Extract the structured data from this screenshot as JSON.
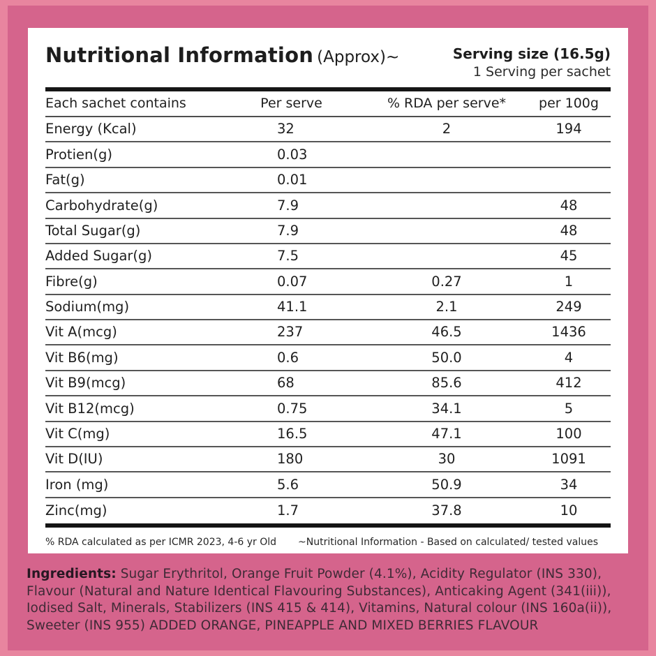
{
  "colors": {
    "background_pink": "#d5648c",
    "frame_pink": "#e8859f",
    "card_white": "#ffffff",
    "table_text": "#1f1f1f",
    "thick_rule": "#141414",
    "thin_rule": "#565656",
    "ingredients_text": "#3f2a36"
  },
  "header": {
    "title": "Nutritional Information",
    "title_suffix": "(Approx)~",
    "serving_size": "Serving size (16.5g)",
    "servings_per_pack": "1 Serving per sachet"
  },
  "table": {
    "columns": [
      "Each sachet contains",
      "Per serve",
      "% RDA per serve*",
      "per 100g"
    ],
    "rows": [
      {
        "nutrient": "Energy (Kcal)",
        "per_serve": "32",
        "rda_per_serve": "2",
        "per_100g": "194"
      },
      {
        "nutrient": "Protien(g)",
        "per_serve": "0.03",
        "rda_per_serve": "",
        "per_100g": ""
      },
      {
        "nutrient": "Fat(g)",
        "per_serve": "0.01",
        "rda_per_serve": "",
        "per_100g": ""
      },
      {
        "nutrient": "Carbohydrate(g)",
        "per_serve": "7.9",
        "rda_per_serve": "",
        "per_100g": "48"
      },
      {
        "nutrient": "Total Sugar(g)",
        "per_serve": "7.9",
        "rda_per_serve": "",
        "per_100g": "48"
      },
      {
        "nutrient": "Added Sugar(g)",
        "per_serve": "7.5",
        "rda_per_serve": "",
        "per_100g": "45"
      },
      {
        "nutrient": "Fibre(g)",
        "per_serve": "0.07",
        "rda_per_serve": "0.27",
        "per_100g": "1"
      },
      {
        "nutrient": "Sodium(mg)",
        "per_serve": "41.1",
        "rda_per_serve": "2.1",
        "per_100g": "249"
      },
      {
        "nutrient": "Vit A(mcg)",
        "per_serve": "237",
        "rda_per_serve": "46.5",
        "per_100g": "1436"
      },
      {
        "nutrient": "Vit B6(mg)",
        "per_serve": "0.6",
        "rda_per_serve": "50.0",
        "per_100g": "4"
      },
      {
        "nutrient": "Vit B9(mcg)",
        "per_serve": "68",
        "rda_per_serve": "85.6",
        "per_100g": "412"
      },
      {
        "nutrient": "Vit B12(mcg)",
        "per_serve": "0.75",
        "rda_per_serve": "34.1",
        "per_100g": "5"
      },
      {
        "nutrient": "Vit C(mg)",
        "per_serve": "16.5",
        "rda_per_serve": "47.1",
        "per_100g": "100"
      },
      {
        "nutrient": "Vit D(IU)",
        "per_serve": "180",
        "rda_per_serve": "30",
        "per_100g": "1091"
      },
      {
        "nutrient": "Iron (mg)",
        "per_serve": "5.6",
        "rda_per_serve": "50.9",
        "per_100g": "34"
      },
      {
        "nutrient": "Zinc(mg)",
        "per_serve": "1.7",
        "rda_per_serve": "37.8",
        "per_100g": "10"
      }
    ]
  },
  "footnotes": {
    "left": "% RDA calculated as per ICMR 2023, 4-6 yr Old",
    "right": "~Nutritional Information - Based on calculated/ tested values"
  },
  "ingredients": {
    "label": "Ingredients:",
    "text": "Sugar Erythritol, Orange Fruit Powder (4.1%), Acidity Regulator (INS 330), Flavour (Natural and Nature Identical Flavouring Substances), Anticaking Agent (341(iii)), Iodised Salt, Minerals, Stabilizers (INS 415 & 414), Vitamins, Natural colour (INS 160a(ii)), Sweeter (INS 955) ADDED ORANGE, PINEAPPLE AND MIXED BERRIES FLAVOUR"
  }
}
